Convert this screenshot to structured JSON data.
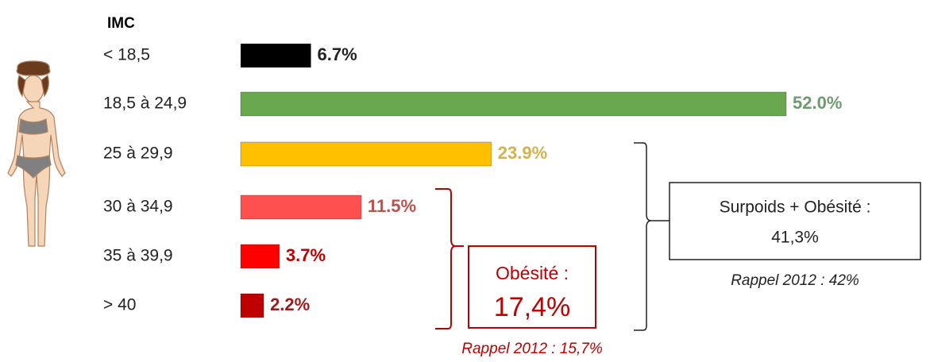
{
  "chart_data": {
    "type": "bar",
    "orientation": "horizontal",
    "categories": [
      "< 18,5",
      "18,5 à 24,9",
      "25 à 29,9",
      "30 à 34,9",
      "35 à 39,9",
      "> 40"
    ],
    "values": [
      6.7,
      52.0,
      23.9,
      11.5,
      3.7,
      2.2
    ],
    "value_labels": [
      "6.7%",
      "52.0%",
      "23.9%",
      "11.5%",
      "3.7%",
      "2.2%"
    ],
    "colors": [
      "#000000",
      "#6aa84f",
      "#ffc000",
      "#ff5050",
      "#ff0000",
      "#c00000"
    ],
    "label_colors": [
      "#222222",
      "#6e9b6e",
      "#d4b24a",
      "#c0504d",
      "#c00000",
      "#9e1a1a"
    ],
    "annotations": [
      {
        "text": "IMC"
      },
      {
        "text": "Surpoids + Obésité :"
      },
      {
        "text": "41,3%"
      },
      {
        "text": "Rappel 2012 : 42%"
      },
      {
        "text": "Obésité :"
      },
      {
        "text": "17,4%"
      },
      {
        "text": "Rappel 2012 : 15,7%"
      }
    ]
  }
}
